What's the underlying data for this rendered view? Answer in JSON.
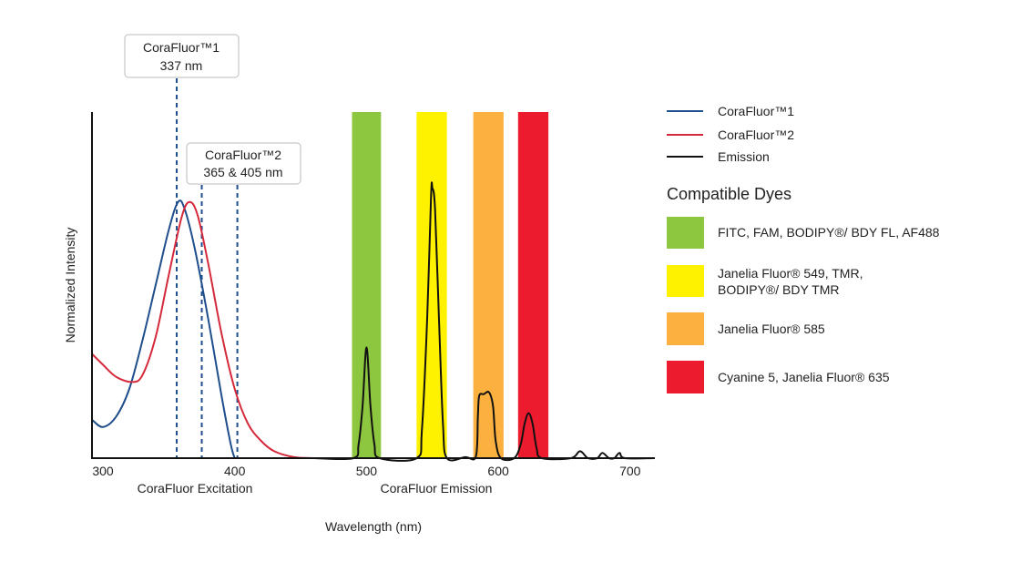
{
  "chart_data": {
    "type": "line",
    "title": "",
    "xlabel": "Wavelength (nm)",
    "ylabel": "Normalized Intensity",
    "xlim": [
      292,
      718
    ],
    "ylim": [
      0,
      1
    ],
    "grid": false,
    "x_ticks": [
      300,
      400,
      500,
      600,
      700
    ],
    "x_tick_labels": [
      "300",
      "400",
      "500",
      "600",
      "700"
    ],
    "axis_sublabels": [
      {
        "text": "CoraFluor Excitation",
        "x": 350
      },
      {
        "text": "CoraFluor Emission",
        "x": 550
      }
    ],
    "series": [
      {
        "name": "CoraFluor™1",
        "color": "#1f4e8c",
        "x": [
          292,
          300,
          310,
          320,
          330,
          340,
          350,
          357,
          362,
          370,
          380,
          390,
          397,
          400
        ],
        "y": [
          0.11,
          0.09,
          0.12,
          0.2,
          0.34,
          0.5,
          0.66,
          0.74,
          0.72,
          0.6,
          0.4,
          0.18,
          0.04,
          0
        ]
      },
      {
        "name": "CoraFluor™2",
        "color": "#d42a3c",
        "x": [
          292,
          300,
          310,
          322,
          330,
          340,
          350,
          360,
          366,
          372,
          380,
          390,
          400,
          410,
          420,
          430,
          445,
          460
        ],
        "y": [
          0.3,
          0.27,
          0.235,
          0.22,
          0.24,
          0.35,
          0.53,
          0.7,
          0.74,
          0.7,
          0.56,
          0.36,
          0.2,
          0.1,
          0.05,
          0.02,
          0.003,
          0
        ]
      },
      {
        "name": "Emission",
        "color": "#111111",
        "x": [
          460,
          490,
          494,
          497,
          500,
          503,
          506,
          510,
          538,
          542,
          546,
          549,
          550,
          552,
          555,
          558,
          561,
          575,
          583,
          584.5,
          585.5,
          589,
          593,
          596,
          598,
          602,
          612,
          617,
          620,
          623,
          626,
          629,
          633,
          655,
          662,
          668,
          675,
          679,
          684,
          688,
          692,
          696,
          718
        ],
        "y": [
          0,
          0,
          0.04,
          0.15,
          0.32,
          0.15,
          0.04,
          0,
          0,
          0.08,
          0.4,
          0.76,
          0.78,
          0.72,
          0.4,
          0.1,
          0,
          0.003,
          0.005,
          0.12,
          0.18,
          0.185,
          0.19,
          0.15,
          0.05,
          0,
          0,
          0.04,
          0.1,
          0.13,
          0.1,
          0.03,
          0,
          0,
          0.02,
          0,
          0,
          0.015,
          0,
          0,
          0.015,
          0,
          0
        ]
      }
    ],
    "bands": [
      {
        "label": "FITC, FAM, BODIPY®/ BDY FL, AF488",
        "from": 489,
        "to": 511,
        "color": "#8dc63f"
      },
      {
        "label": "Janelia Fluor® 549, TMR, BODIPY®/ BDY TMR",
        "line1": "Janelia Fluor® 549, TMR,",
        "line2": "BODIPY®/ BDY TMR",
        "from": 538,
        "to": 561,
        "color": "#fff200"
      },
      {
        "label": "Janelia Fluor® 585",
        "from": 581,
        "to": 604,
        "color": "#fbb040"
      },
      {
        "label": "Cyanine 5, Janelia Fluor® 635",
        "from": 615,
        "to": 638,
        "color": "#ec1c2e"
      }
    ],
    "dashed_lines": [
      356,
      375,
      402
    ],
    "annotations": [
      {
        "line1": "CoraFluor™1",
        "line2": "337 nm"
      },
      {
        "line1": "CoraFluor™2",
        "line2": "365 & 405 nm"
      }
    ],
    "legend_placement": "right",
    "legend_title": "Compatible Dyes"
  }
}
